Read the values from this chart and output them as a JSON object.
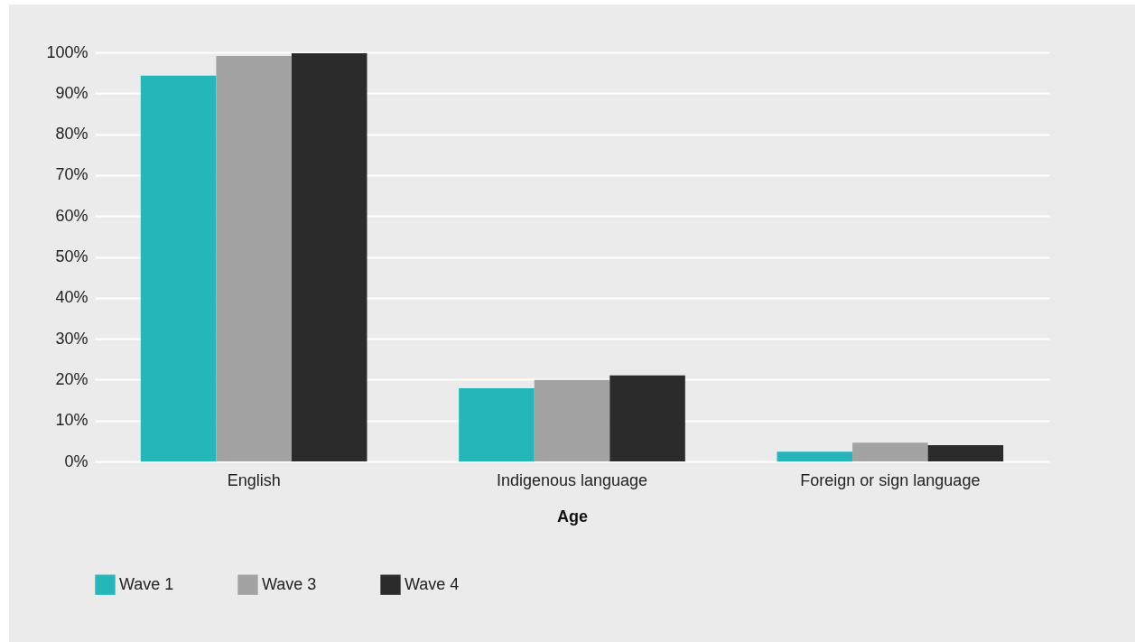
{
  "chart_data": {
    "type": "bar",
    "xlabel": "Age",
    "categories": [
      "English",
      "Indigenous language",
      "Foreign or sign language"
    ],
    "series": [
      {
        "name": "Wave 1",
        "color": "#24b6b8",
        "values": [
          94.3,
          17.9,
          2.4
        ]
      },
      {
        "name": "Wave 3",
        "color": "#a3a3a3",
        "values": [
          99.1,
          19.9,
          4.6
        ]
      },
      {
        "name": "Wave 4",
        "color": "#2b2b2b",
        "values": [
          99.8,
          21.0,
          4.0
        ]
      }
    ],
    "ylim": [
      0,
      100
    ],
    "yticks": [
      {
        "value": 0,
        "label": "0%"
      },
      {
        "value": 10,
        "label": "10%"
      },
      {
        "value": 20,
        "label": "20%"
      },
      {
        "value": 30,
        "label": "30%"
      },
      {
        "value": 40,
        "label": "40%"
      },
      {
        "value": 50,
        "label": "50%"
      },
      {
        "value": 60,
        "label": "60%"
      },
      {
        "value": 70,
        "label": "70%"
      },
      {
        "value": 80,
        "label": "80%"
      },
      {
        "value": 90,
        "label": "90%"
      },
      {
        "value": 100,
        "label": "100%"
      }
    ],
    "grid": "y",
    "legend": "bottom"
  }
}
